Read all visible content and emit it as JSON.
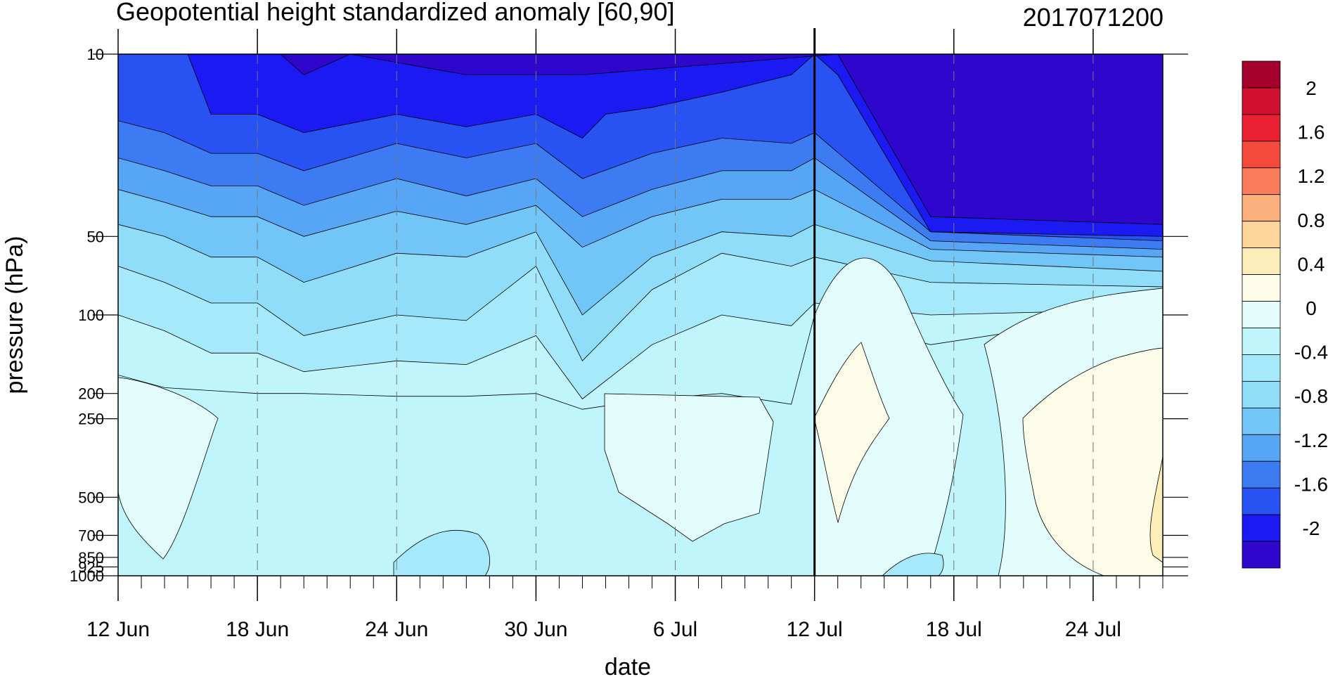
{
  "chart_data": {
    "type": "heatmap",
    "title": "Geopotential height standardized anomaly [60,90]",
    "date_stamp": "2017071200",
    "xlabel": "date",
    "ylabel": "pressure (hPa)",
    "x_start": "2017-06-12",
    "x_end": "2017-07-27",
    "x_ticks": [
      {
        "date": "2017-06-12",
        "label": "12 Jun"
      },
      {
        "date": "2017-06-18",
        "label": "18 Jun"
      },
      {
        "date": "2017-06-24",
        "label": "24 Jun"
      },
      {
        "date": "2017-06-30",
        "label": "30 Jun"
      },
      {
        "date": "2017-07-06",
        "label": "6 Jul"
      },
      {
        "date": "2017-07-12",
        "label": "12 Jul"
      },
      {
        "date": "2017-07-18",
        "label": "18 Jul"
      },
      {
        "date": "2017-07-24",
        "label": "24 Jul"
      }
    ],
    "y_scale": "log",
    "y_reversed": true,
    "ylim": [
      1000,
      10
    ],
    "y_ticks": [
      10,
      50,
      100,
      200,
      250,
      500,
      700,
      850,
      925,
      1000
    ],
    "marker_line_date": "2017-07-12",
    "colorbar": {
      "colors": [
        "#2e06cc",
        "#1b1af2",
        "#2852f2",
        "#3d7bf2",
        "#56a6f5",
        "#72c6f7",
        "#8fddf8",
        "#a5e9fa",
        "#bff5fb",
        "#e3fcfc",
        "#fdfce8",
        "#fdedb8",
        "#fdd59a",
        "#fcb07c",
        "#f97d5a",
        "#f44a3d",
        "#e82032",
        "#d11030",
        "#a4002e"
      ],
      "labels": [
        "-2",
        "-1.6",
        "-1.2",
        "-0.8",
        "-0.4",
        "0",
        "0.4",
        "0.8",
        "1.2",
        "1.6",
        "2"
      ]
    },
    "contour_bands": [
      {
        "value_range": "< -2",
        "color": "#2e06cc",
        "boundary_dates": [
          "2017-06-17",
          "2017-06-19",
          "2017-06-20",
          "2017-06-22",
          "2017-06-27",
          "2017-07-02",
          "2017-07-13",
          "2017-07-17",
          "2017-07-27"
        ],
        "boundary_hpa": [
          10,
          10,
          12,
          10,
          12,
          12,
          10,
          42,
          45
        ]
      },
      {
        "value_range": "-2 to -1.8",
        "color": "#1b1af2",
        "boundary_dates": [
          "2017-06-12",
          "2017-06-15",
          "2017-06-16",
          "2017-06-18",
          "2017-06-20",
          "2017-06-24",
          "2017-06-27",
          "2017-06-30",
          "2017-07-02",
          "2017-07-03",
          "2017-07-05",
          "2017-07-08",
          "2017-07-11",
          "2017-07-12",
          "2017-07-13",
          "2017-07-17",
          "2017-07-27"
        ],
        "boundary_hpa": [
          10,
          10,
          17,
          17,
          20,
          17,
          19,
          17,
          21,
          17,
          16,
          14,
          12,
          10,
          12,
          48,
          50
        ]
      },
      {
        "value_range": "-1.8 to -1.6",
        "color": "#2852f2",
        "boundary_dates": [
          "2017-06-12",
          "2017-06-14",
          "2017-06-16",
          "2017-06-18",
          "2017-06-20",
          "2017-06-24",
          "2017-06-27",
          "2017-06-30",
          "2017-07-02",
          "2017-07-05",
          "2017-07-08",
          "2017-07-11",
          "2017-07-12",
          "2017-07-17",
          "2017-07-27"
        ],
        "boundary_hpa": [
          18,
          20,
          24,
          24,
          28,
          22,
          25,
          22,
          30,
          24,
          21,
          22,
          20,
          48,
          52
        ]
      },
      {
        "value_range": "-1.6 to -1.4",
        "color": "#3d7bf2",
        "boundary_dates": [
          "2017-06-12",
          "2017-06-14",
          "2017-06-16",
          "2017-06-18",
          "2017-06-20",
          "2017-06-24",
          "2017-06-27",
          "2017-06-30",
          "2017-07-02",
          "2017-07-05",
          "2017-07-08",
          "2017-07-11",
          "2017-07-12",
          "2017-07-17",
          "2017-07-27"
        ],
        "boundary_hpa": [
          25,
          28,
          32,
          32,
          38,
          30,
          35,
          30,
          42,
          33,
          28,
          28,
          25,
          52,
          56
        ]
      },
      {
        "value_range": "-1.4 to -1.2",
        "color": "#56a6f5",
        "boundary_dates": [
          "2017-06-12",
          "2017-06-14",
          "2017-06-16",
          "2017-06-18",
          "2017-06-20",
          "2017-06-24",
          "2017-06-27",
          "2017-06-30",
          "2017-07-02",
          "2017-07-05",
          "2017-07-08",
          "2017-07-11",
          "2017-07-12",
          "2017-07-17",
          "2017-07-27"
        ],
        "boundary_hpa": [
          33,
          37,
          42,
          42,
          50,
          40,
          45,
          38,
          55,
          42,
          36,
          36,
          33,
          56,
          60
        ]
      },
      {
        "value_range": "-1.2 to -1.0",
        "color": "#72c6f7",
        "boundary_dates": [
          "2017-06-12",
          "2017-06-14",
          "2017-06-16",
          "2017-06-18",
          "2017-06-20",
          "2017-06-24",
          "2017-06-27",
          "2017-06-30",
          "2017-07-02",
          "2017-07-05",
          "2017-07-08",
          "2017-07-11",
          "2017-07-12",
          "2017-07-17",
          "2017-07-27"
        ],
        "boundary_hpa": [
          45,
          50,
          60,
          60,
          75,
          58,
          60,
          48,
          100,
          60,
          48,
          50,
          45,
          62,
          68
        ]
      },
      {
        "value_range": "-1.0 to -0.8",
        "color": "#8fddf8",
        "boundary_dates": [
          "2017-06-12",
          "2017-06-14",
          "2017-06-16",
          "2017-06-18",
          "2017-06-20",
          "2017-06-24",
          "2017-06-27",
          "2017-06-30",
          "2017-07-02",
          "2017-07-05",
          "2017-07-08",
          "2017-07-11",
          "2017-07-12",
          "2017-07-17",
          "2017-07-27"
        ],
        "boundary_hpa": [
          65,
          75,
          90,
          90,
          120,
          100,
          105,
          65,
          150,
          80,
          58,
          65,
          60,
          75,
          78
        ]
      },
      {
        "value_range": "-0.8 to -0.6",
        "color": "#a5e9fa",
        "boundary_dates": [
          "2017-06-12",
          "2017-06-14",
          "2017-06-16",
          "2017-06-18",
          "2017-06-20",
          "2017-06-24",
          "2017-06-27",
          "2017-06-30",
          "2017-07-02",
          "2017-07-05",
          "2017-07-08",
          "2017-07-11",
          "2017-07-12",
          "2017-07-17",
          "2017-07-27"
        ],
        "boundary_hpa": [
          100,
          115,
          140,
          140,
          165,
          150,
          155,
          120,
          210,
          130,
          100,
          110,
          90,
          100,
          95
        ]
      },
      {
        "value_range": "-0.6 to -0.4",
        "color": "#bff5fb",
        "boundary_dates": [
          "2017-06-12",
          "2017-06-14",
          "2017-06-16",
          "2017-06-18",
          "2017-06-20",
          "2017-06-24",
          "2017-06-27",
          "2017-06-30",
          "2017-07-02",
          "2017-07-05",
          "2017-07-08",
          "2017-07-11",
          "2017-07-12",
          "2017-07-17",
          "2017-07-27"
        ],
        "boundary_hpa": [
          170,
          190,
          195,
          200,
          200,
          205,
          205,
          200,
          230,
          210,
          200,
          220,
          100,
          130,
          95
        ]
      },
      {
        "value_range": "-0.4 to -0.2",
        "color": "#e3fcfc",
        "region": "lower troposphere patches"
      },
      {
        "value_range": "0 to 0.4",
        "color": "#fdfce8",
        "region": "12 Jul - 15 Jul, 140-650 hPa; 21 Jul - 27 Jul, 130-1000 hPa"
      }
    ]
  }
}
